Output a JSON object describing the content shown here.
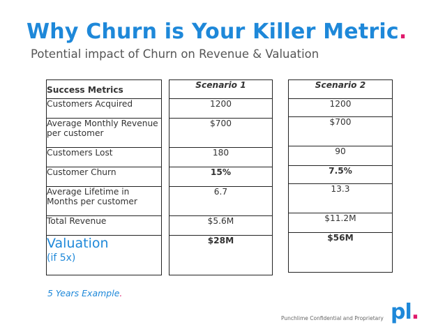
{
  "title": {
    "main": "Why Churn is Your Killer Metric",
    "dot": "."
  },
  "subtitle": "Potential impact of Churn on Revenue & Valuation",
  "metrics": {
    "header": "Success Metrics",
    "rows": {
      "acquired": "Customers Acquired",
      "arpc": "Average Monthly Revenue per customer",
      "lost": "Customers Lost",
      "churn": "Customer Churn",
      "lifetime": "Average Lifetime in Months per customer",
      "revenue": "Total Revenue",
      "valuation": "Valuation",
      "valuation_sub": "(if 5x)"
    }
  },
  "scenario1": {
    "header": "Scenario 1",
    "acquired": "1200",
    "arpc": "$700",
    "lost": "180",
    "churn": "15%",
    "lifetime": "6.7",
    "revenue": "$5.6M",
    "valuation": "$28M"
  },
  "scenario2": {
    "header": "Scenario 2",
    "acquired": "1200",
    "arpc": "$700",
    "lost": "90",
    "churn": "7.5%",
    "lifetime": "13.3",
    "revenue": "$11.2M",
    "valuation": "$56M"
  },
  "note": {
    "text": "5 Years Example",
    "dot": "."
  },
  "footer": "Punchlime Confidential and Proprietary",
  "logo": {
    "text": "pl",
    "dot": "."
  },
  "colors": {
    "blue": "#1e88d9",
    "pink": "#e0196b",
    "green": "#1fc25a"
  }
}
